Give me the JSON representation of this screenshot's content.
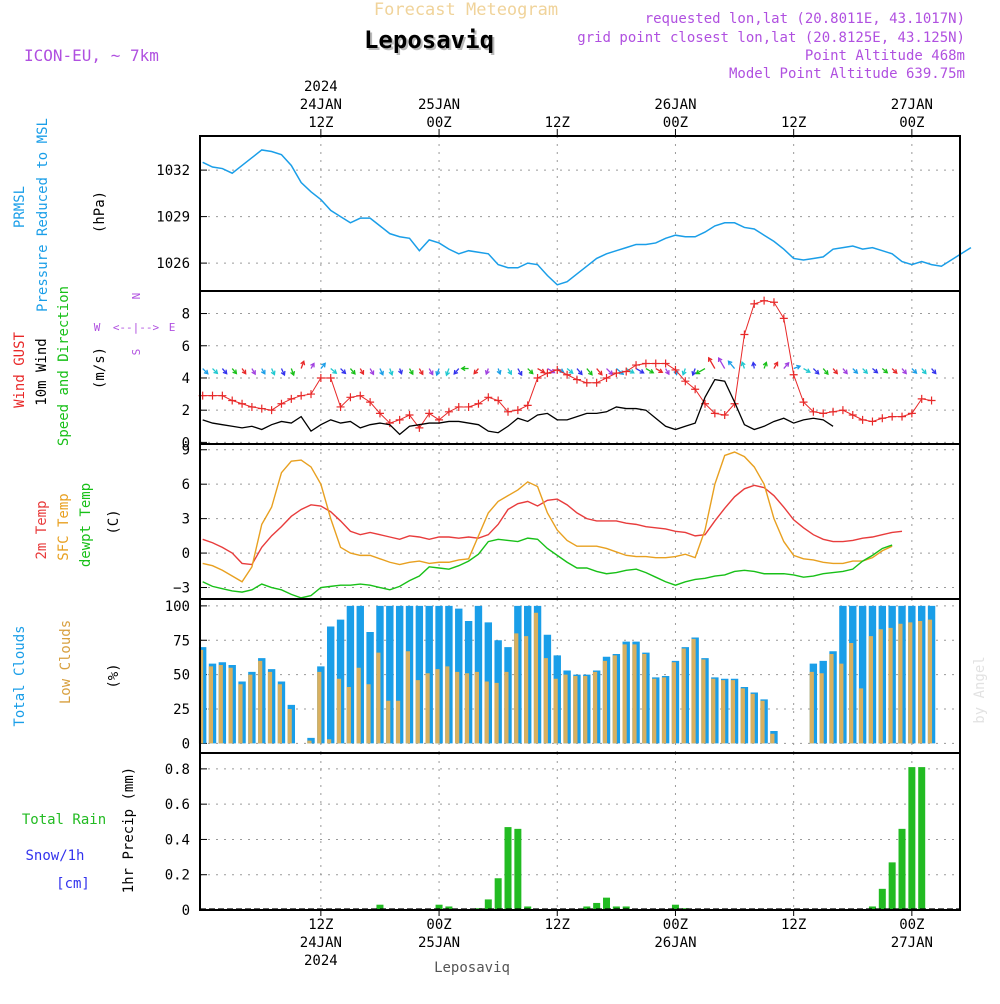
{
  "header": {
    "brand": "Forecast Meteogram",
    "title": "Leposaviq",
    "model": "ICON-EU, ~ 7km",
    "requested": "requested lon,lat (20.8011E, 43.1017N)",
    "gridpoint": "grid point closest lon,lat (20.8125E, 43.125N)",
    "point_alt": "Point Altitude 468m",
    "model_alt": "Model Point Altitude 639.75m",
    "footer": "Leposaviq",
    "credit": "by Angel"
  },
  "colors": {
    "pressure": "#1a9ee8",
    "gust": "#e82828",
    "wind": "#000000",
    "temp2m": "#e83c3c",
    "sfc": "#e8a020",
    "dew": "#18c018",
    "cloud_total": "#1a9ee8",
    "cloud_low": "#d8b060",
    "rain": "#22bb22",
    "snow": "#3333ee",
    "compass": "#b050e0"
  },
  "time_axis": {
    "top_labels": [
      {
        "h": 12,
        "lines": [
          "2024",
          "24JAN",
          "12Z"
        ]
      },
      {
        "h": 24,
        "lines": [
          "25JAN",
          "00Z"
        ]
      },
      {
        "h": 36,
        "lines": [
          "12Z"
        ]
      },
      {
        "h": 48,
        "lines": [
          "26JAN",
          "00Z"
        ]
      },
      {
        "h": 60,
        "lines": [
          "12Z"
        ]
      },
      {
        "h": 72,
        "lines": [
          "27JAN",
          "00Z"
        ]
      }
    ],
    "bottom_labels": [
      {
        "h": 12,
        "lines": [
          "12Z",
          "24JAN",
          "2024"
        ]
      },
      {
        "h": 24,
        "lines": [
          "00Z",
          "25JAN"
        ]
      },
      {
        "h": 36,
        "lines": [
          "12Z"
        ]
      },
      {
        "h": 48,
        "lines": [
          "00Z",
          "26JAN"
        ]
      },
      {
        "h": 60,
        "lines": [
          "12Z"
        ]
      },
      {
        "h": 72,
        "lines": [
          "00Z",
          "27JAN"
        ]
      }
    ]
  },
  "chart_data": [
    {
      "type": "line",
      "id": "pressure",
      "ylabel_lines": [
        "PRMSL",
        "Pressure Reduced to MSL"
      ],
      "unit": "(hPa)",
      "ylim": [
        1024.2,
        1034.2
      ],
      "yticks": [
        1026,
        1029,
        1032
      ],
      "series": [
        {
          "name": "PRMSL",
          "values": [
            1032.5,
            1032.2,
            1032.1,
            1031.8,
            1032.3,
            1032.8,
            1033.3,
            1033.2,
            1033.0,
            1032.3,
            1031.2,
            1030.6,
            1030.1,
            1029.4,
            1029.0,
            1028.6,
            1028.9,
            1028.9,
            1028.4,
            1027.9,
            1027.7,
            1027.6,
            1026.8,
            1027.5,
            1027.3,
            1026.9,
            1026.6,
            1026.8,
            1026.7,
            1026.6,
            1025.9,
            1025.7,
            1025.7,
            1026.0,
            1025.9,
            1025.2,
            1024.6,
            1024.8,
            1025.3,
            1025.8,
            1026.3,
            1026.6,
            1026.8,
            1027.0,
            1027.2,
            1027.2,
            1027.3,
            1027.6,
            1027.8,
            1027.7,
            1027.7,
            1028.0,
            1028.4,
            1028.6,
            1028.6,
            1028.3,
            1028.2,
            1027.8,
            1027.4,
            1026.9,
            1026.3,
            1026.2,
            1026.3,
            1026.4,
            1026.9,
            1027.0,
            1027.1,
            1026.9,
            1027.0,
            1026.8,
            1026.6,
            1026.1,
            1025.9,
            1026.1,
            1025.9,
            1025.8,
            1026.2,
            1026.6,
            1027.0
          ]
        }
      ]
    },
    {
      "type": "line",
      "id": "wind",
      "ylabel_lines": [
        "Wind GUST",
        "10m Wind",
        "Speed and Direction"
      ],
      "unit": "(m/s)",
      "ylim": [
        -0.1,
        9.4
      ],
      "yticks": [
        0,
        2,
        4,
        6,
        8
      ],
      "compass": {
        "n": "N",
        "s": "S",
        "w": "W",
        "e": "E",
        "cross": "<--|-->"
      },
      "series": [
        {
          "name": "Wind GUST",
          "values": [
            2.9,
            2.9,
            2.9,
            2.6,
            2.4,
            2.2,
            2.1,
            2.0,
            2.4,
            2.7,
            2.9,
            3.0,
            4.0,
            4.0,
            2.2,
            2.8,
            2.9,
            2.5,
            1.8,
            1.2,
            1.4,
            1.7,
            0.9,
            1.8,
            1.4,
            1.9,
            2.2,
            2.2,
            2.4,
            2.8,
            2.6,
            1.9,
            2.0,
            2.3,
            4.0,
            4.3,
            4.5,
            4.2,
            3.9,
            3.7,
            3.7,
            4.0,
            4.3,
            4.4,
            4.8,
            4.9,
            4.9,
            4.9,
            4.5,
            3.8,
            3.3,
            2.4,
            1.8,
            1.7,
            2.4,
            6.7,
            8.6,
            8.8,
            8.7,
            7.7,
            4.2,
            2.5,
            1.9,
            1.8,
            1.9,
            2.0,
            1.7,
            1.4,
            1.3,
            1.5,
            1.6,
            1.6,
            1.8,
            2.7,
            2.6
          ]
        },
        {
          "name": "10m Wind",
          "values": [
            1.4,
            1.2,
            1.1,
            1.0,
            0.9,
            1.0,
            0.8,
            1.1,
            1.3,
            1.2,
            1.6,
            0.7,
            1.1,
            1.4,
            1.2,
            1.3,
            0.9,
            1.1,
            1.2,
            1.1,
            0.5,
            1.0,
            1.1,
            1.2,
            1.2,
            1.3,
            1.3,
            1.2,
            1.1,
            0.7,
            0.6,
            1.0,
            1.5,
            1.3,
            1.7,
            1.8,
            1.4,
            1.4,
            1.6,
            1.8,
            1.8,
            1.9,
            2.2,
            2.1,
            2.1,
            2.0,
            1.5,
            1.0,
            0.8,
            1.0,
            1.2,
            2.8,
            3.9,
            3.8,
            2.5,
            1.1,
            0.8,
            1.0,
            1.3,
            1.5,
            1.2,
            1.4,
            1.5,
            1.4,
            1.0
          ]
        },
        {
          "name": "Direction",
          "values": [
            315,
            315,
            320,
            320,
            325,
            330,
            330,
            335,
            335,
            340,
            200,
            210,
            220,
            310,
            315,
            320,
            330,
            330,
            335,
            340,
            340,
            330,
            330,
            330,
            20,
            20,
            40,
            90,
            40,
            20,
            340,
            330,
            330,
            315,
            300,
            300,
            300,
            310,
            320,
            320,
            320,
            315,
            310,
            300,
            300,
            300,
            300,
            330,
            350,
            20,
            20,
            60,
            150,
            150,
            140,
            160,
            170,
            200,
            210,
            220,
            250,
            300,
            315,
            320,
            320,
            320,
            315,
            315,
            310,
            310,
            315,
            320,
            315,
            320,
            320
          ]
        }
      ]
    },
    {
      "type": "line",
      "id": "temp",
      "ylabel_lines": [
        "2m Temp",
        "SFC Temp",
        "dewpt Temp"
      ],
      "unit": "(C)",
      "ylim": [
        -4.0,
        9.5
      ],
      "yticks": [
        -3,
        0,
        3,
        6,
        9
      ],
      "series": [
        {
          "name": "2m Temp",
          "values": [
            1.2,
            0.9,
            0.5,
            0.0,
            -0.9,
            -1.0,
            0.5,
            1.5,
            2.3,
            3.2,
            3.8,
            4.2,
            4.1,
            3.6,
            2.8,
            1.9,
            1.6,
            1.8,
            1.6,
            1.4,
            1.2,
            1.5,
            1.4,
            1.2,
            1.4,
            1.4,
            1.3,
            1.4,
            1.3,
            1.6,
            2.5,
            3.8,
            4.3,
            4.5,
            4.1,
            4.6,
            4.7,
            4.2,
            3.5,
            3.0,
            2.8,
            2.8,
            2.8,
            2.6,
            2.5,
            2.3,
            2.2,
            2.1,
            1.9,
            1.8,
            1.5,
            1.6,
            2.8,
            3.9,
            4.9,
            5.6,
            5.9,
            5.7,
            5.0,
            4.0,
            2.9,
            2.2,
            1.6,
            1.2,
            1.0,
            1.0,
            1.1,
            1.3,
            1.4,
            1.6,
            1.8,
            1.9
          ]
        },
        {
          "name": "SFC Temp",
          "values": [
            -0.9,
            -1.1,
            -1.5,
            -2.0,
            -2.5,
            -1.2,
            2.5,
            4.0,
            7.0,
            8.0,
            8.1,
            7.5,
            6.0,
            3.0,
            0.5,
            0.0,
            -0.2,
            -0.2,
            -0.5,
            -0.8,
            -1.0,
            -0.8,
            -0.7,
            -0.9,
            -0.8,
            -0.8,
            -0.6,
            -0.5,
            1.5,
            3.5,
            4.5,
            5.0,
            5.5,
            6.2,
            5.8,
            3.5,
            2.0,
            1.1,
            0.6,
            0.6,
            0.6,
            0.4,
            0.1,
            -0.2,
            -0.3,
            -0.3,
            -0.4,
            -0.4,
            -0.3,
            -0.1,
            -0.4,
            2.0,
            6.0,
            8.5,
            8.8,
            8.4,
            7.5,
            6.0,
            3.0,
            1.0,
            -0.2,
            -0.5,
            -0.6,
            -0.8,
            -0.9,
            -0.9,
            -0.7,
            -0.7,
            -0.4,
            0.2,
            0.6
          ]
        },
        {
          "name": "dewpt Temp",
          "values": [
            -2.5,
            -2.9,
            -3.1,
            -3.3,
            -3.4,
            -3.2,
            -2.7,
            -3.0,
            -3.2,
            -3.6,
            -3.9,
            -3.7,
            -3.0,
            -2.9,
            -2.8,
            -2.8,
            -2.7,
            -2.8,
            -3.0,
            -3.2,
            -2.9,
            -2.4,
            -2.0,
            -1.2,
            -1.3,
            -1.4,
            -1.1,
            -0.7,
            -0.1,
            1.0,
            1.2,
            1.1,
            1.0,
            1.3,
            1.2,
            0.4,
            -0.2,
            -0.8,
            -1.3,
            -1.3,
            -1.6,
            -1.8,
            -1.7,
            -1.5,
            -1.4,
            -1.7,
            -2.1,
            -2.5,
            -2.8,
            -2.5,
            -2.3,
            -2.2,
            -2.0,
            -1.9,
            -1.6,
            -1.5,
            -1.6,
            -1.8,
            -1.8,
            -1.8,
            -1.9,
            -2.1,
            -2.0,
            -1.8,
            -1.7,
            -1.6,
            -1.4,
            -0.7,
            -0.2,
            0.4,
            0.7
          ]
        }
      ]
    },
    {
      "type": "bar",
      "id": "clouds",
      "ylabel_lines": [
        "Total Clouds",
        "Low Clouds"
      ],
      "unit": "(%)",
      "ylim": [
        -7,
        105
      ],
      "yticks": [
        0,
        25,
        50,
        75,
        100
      ],
      "series": [
        {
          "name": "Total Clouds",
          "values": [
            70,
            58,
            59,
            57,
            45,
            52,
            62,
            54,
            45,
            28,
            0,
            4,
            56,
            85,
            90,
            100,
            100,
            81,
            100,
            100,
            100,
            100,
            100,
            100,
            100,
            100,
            98,
            89,
            100,
            88,
            75,
            70,
            100,
            100,
            100,
            79,
            64,
            53,
            50,
            50,
            53,
            63,
            65,
            74,
            74,
            66,
            48,
            49,
            60,
            70,
            77,
            62,
            48,
            47,
            47,
            41,
            37,
            32,
            9,
            0,
            0,
            0,
            58,
            60,
            67,
            100,
            100,
            100,
            100,
            100,
            100,
            100,
            100,
            100,
            100
          ]
        },
        {
          "name": "Low Clouds",
          "values": [
            68,
            56,
            57,
            55,
            43,
            50,
            60,
            52,
            43,
            25,
            0,
            2,
            52,
            3,
            47,
            41,
            55,
            43,
            66,
            31,
            31,
            67,
            46,
            51,
            54,
            56,
            52,
            51,
            52,
            45,
            44,
            52,
            80,
            78,
            95,
            62,
            47,
            50,
            49,
            49,
            52,
            60,
            64,
            72,
            72,
            65,
            47,
            48,
            59,
            69,
            76,
            61,
            47,
            46,
            46,
            40,
            36,
            31,
            7,
            0,
            0,
            0,
            52,
            51,
            65,
            58,
            73,
            40,
            78,
            83,
            84,
            87,
            88,
            89,
            90
          ]
        }
      ]
    },
    {
      "type": "bar",
      "id": "precip",
      "ylabel_lines": [
        "Total Rain",
        "Snow/1h",
        "[cm]"
      ],
      "unit": "1hr Precip (mm)",
      "ylim": [
        0,
        0.89
      ],
      "yticks": [
        0,
        0.2,
        0.4,
        0.6,
        0.8
      ],
      "series": [
        {
          "name": "Total Rain",
          "values": [
            0,
            0,
            0,
            0,
            0,
            0,
            0,
            0,
            0,
            0,
            0,
            0,
            0,
            0,
            0,
            0,
            0,
            0,
            0.03,
            0,
            0,
            0,
            0,
            0,
            0.03,
            0.02,
            0,
            0,
            0.01,
            0.06,
            0.18,
            0.47,
            0.46,
            0.02,
            0,
            0,
            0,
            0,
            0,
            0.02,
            0.04,
            0.07,
            0.02,
            0.02,
            0,
            0,
            0,
            0,
            0.03,
            0.01,
            0,
            0,
            0,
            0,
            0,
            0,
            0,
            0,
            0,
            0,
            0,
            0,
            0,
            0,
            0,
            0,
            0,
            0,
            0.02,
            0.12,
            0.27,
            0.46,
            0.81,
            0.81
          ]
        },
        {
          "name": "Snow/1h",
          "values": [
            0,
            0,
            0,
            0,
            0,
            0,
            0,
            0,
            0,
            0,
            0,
            0,
            0,
            0,
            0,
            0,
            0,
            0,
            0,
            0,
            0,
            0,
            0,
            0,
            0,
            0,
            0,
            0,
            0,
            0,
            0,
            0,
            0,
            0,
            0,
            0,
            0,
            0,
            0,
            0,
            0,
            0,
            0,
            0,
            0,
            0,
            0,
            0,
            0,
            0,
            0,
            0,
            0,
            0,
            0,
            0,
            0,
            0,
            0,
            0,
            0,
            0,
            0,
            0,
            0,
            0,
            0,
            0,
            0,
            0,
            0,
            0,
            0,
            0,
            0
          ]
        }
      ]
    }
  ]
}
